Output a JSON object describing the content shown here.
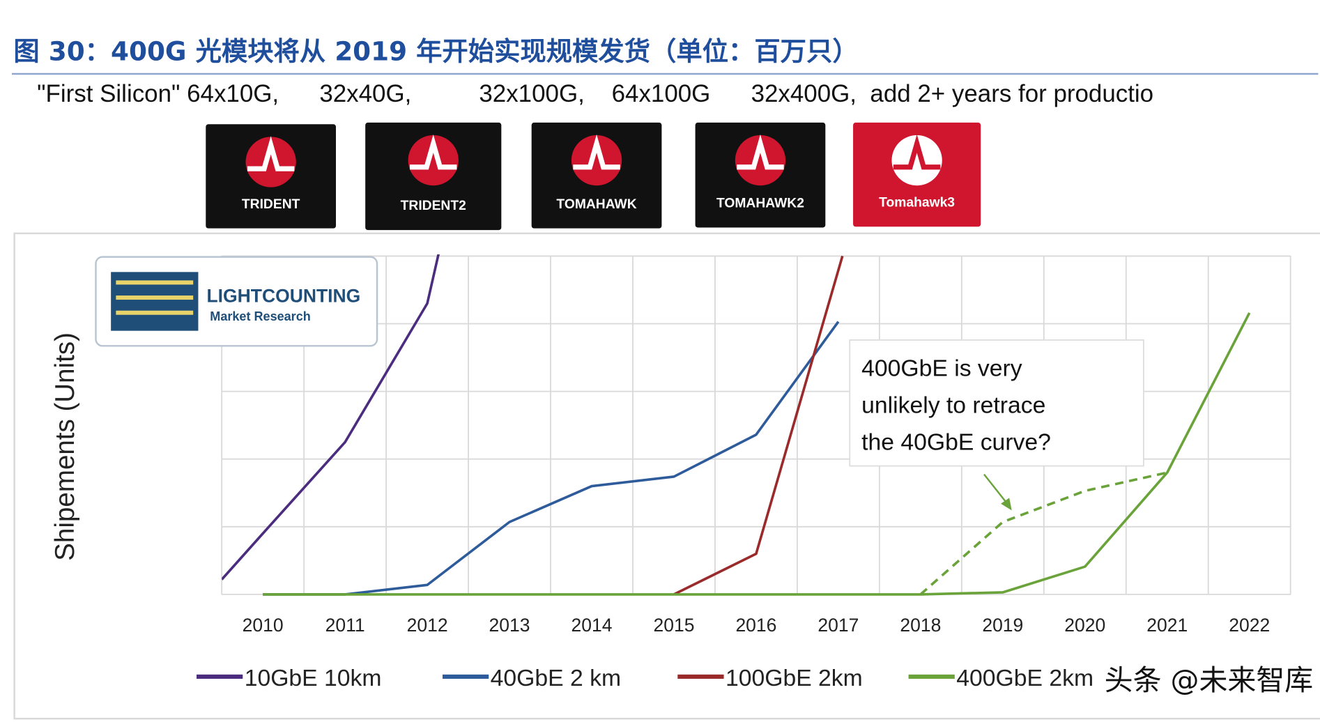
{
  "title": "图 30：400G 光模块将从 2019 年开始实现规模发货（单位：百万只）",
  "subtitle": "\"First Silicon\" 64x10G,      32x40G,          32x100G,    64x100G      32x400G,  add 2+ years for productio",
  "chips": [
    {
      "label": "TRIDENT",
      "color": "#111111"
    },
    {
      "label": "TRIDENT2",
      "color": "#111111"
    },
    {
      "label": "TOMAHAWK",
      "color": "#111111"
    },
    {
      "label": "TOMAHAWK2",
      "color": "#111111"
    },
    {
      "label": "Tomahawk3",
      "color": "#d0152e"
    }
  ],
  "logo": {
    "line1": "LIGHTCOUNTING",
    "line2": "Market Research"
  },
  "annotation": [
    "400GbE is very",
    "unlikely to retrace",
    "the 40GbE curve?"
  ],
  "watermark": "头条 @未来智库",
  "chart_data": {
    "type": "line",
    "title": "",
    "xlabel": "",
    "ylabel": "Shipements (Units)",
    "categories": [
      "2010",
      "2011",
      "2012",
      "2013",
      "2014",
      "2015",
      "2016",
      "2017",
      "2018",
      "2019",
      "2020",
      "2021",
      "2022"
    ],
    "xlim": [
      2009.5,
      2022.5
    ],
    "ylim": [
      0,
      5
    ],
    "grid": true,
    "legend_position": "bottom",
    "series": [
      {
        "name": "10GbE 10km",
        "color": "#4b2c7f",
        "x": [
          2009.5,
          2010,
          2011,
          2012,
          2012.6
        ],
        "y": [
          0.22,
          0.9,
          2.25,
          4.3,
          7.5
        ]
      },
      {
        "name": "40GbE 2 km",
        "color": "#2e5b9a",
        "x": [
          2010,
          2011,
          2012,
          2013,
          2014,
          2015,
          2016,
          2017
        ],
        "y": [
          0,
          0,
          0.14,
          1.07,
          1.6,
          1.74,
          2.36,
          4.03
        ]
      },
      {
        "name": "100GbE 2km",
        "color": "#9b2a2a",
        "x": [
          2015,
          2016,
          2017.05
        ],
        "y": [
          0,
          0.6,
          5.0
        ]
      },
      {
        "name": "400GbE 2km",
        "color": "#6aa33a",
        "x": [
          2010,
          2011,
          2012,
          2013,
          2014,
          2015,
          2016,
          2017,
          2018,
          2019,
          2020,
          2021,
          2022
        ],
        "y": [
          0,
          0,
          0,
          0,
          0,
          0,
          0,
          0,
          0,
          0.03,
          0.41,
          1.8,
          4.16
        ]
      },
      {
        "name": "400GbE projection",
        "color": "#6aa33a",
        "dashed": true,
        "legend": false,
        "x": [
          2018,
          2019,
          2020,
          2021
        ],
        "y": [
          0,
          1.07,
          1.53,
          1.8
        ]
      }
    ]
  }
}
